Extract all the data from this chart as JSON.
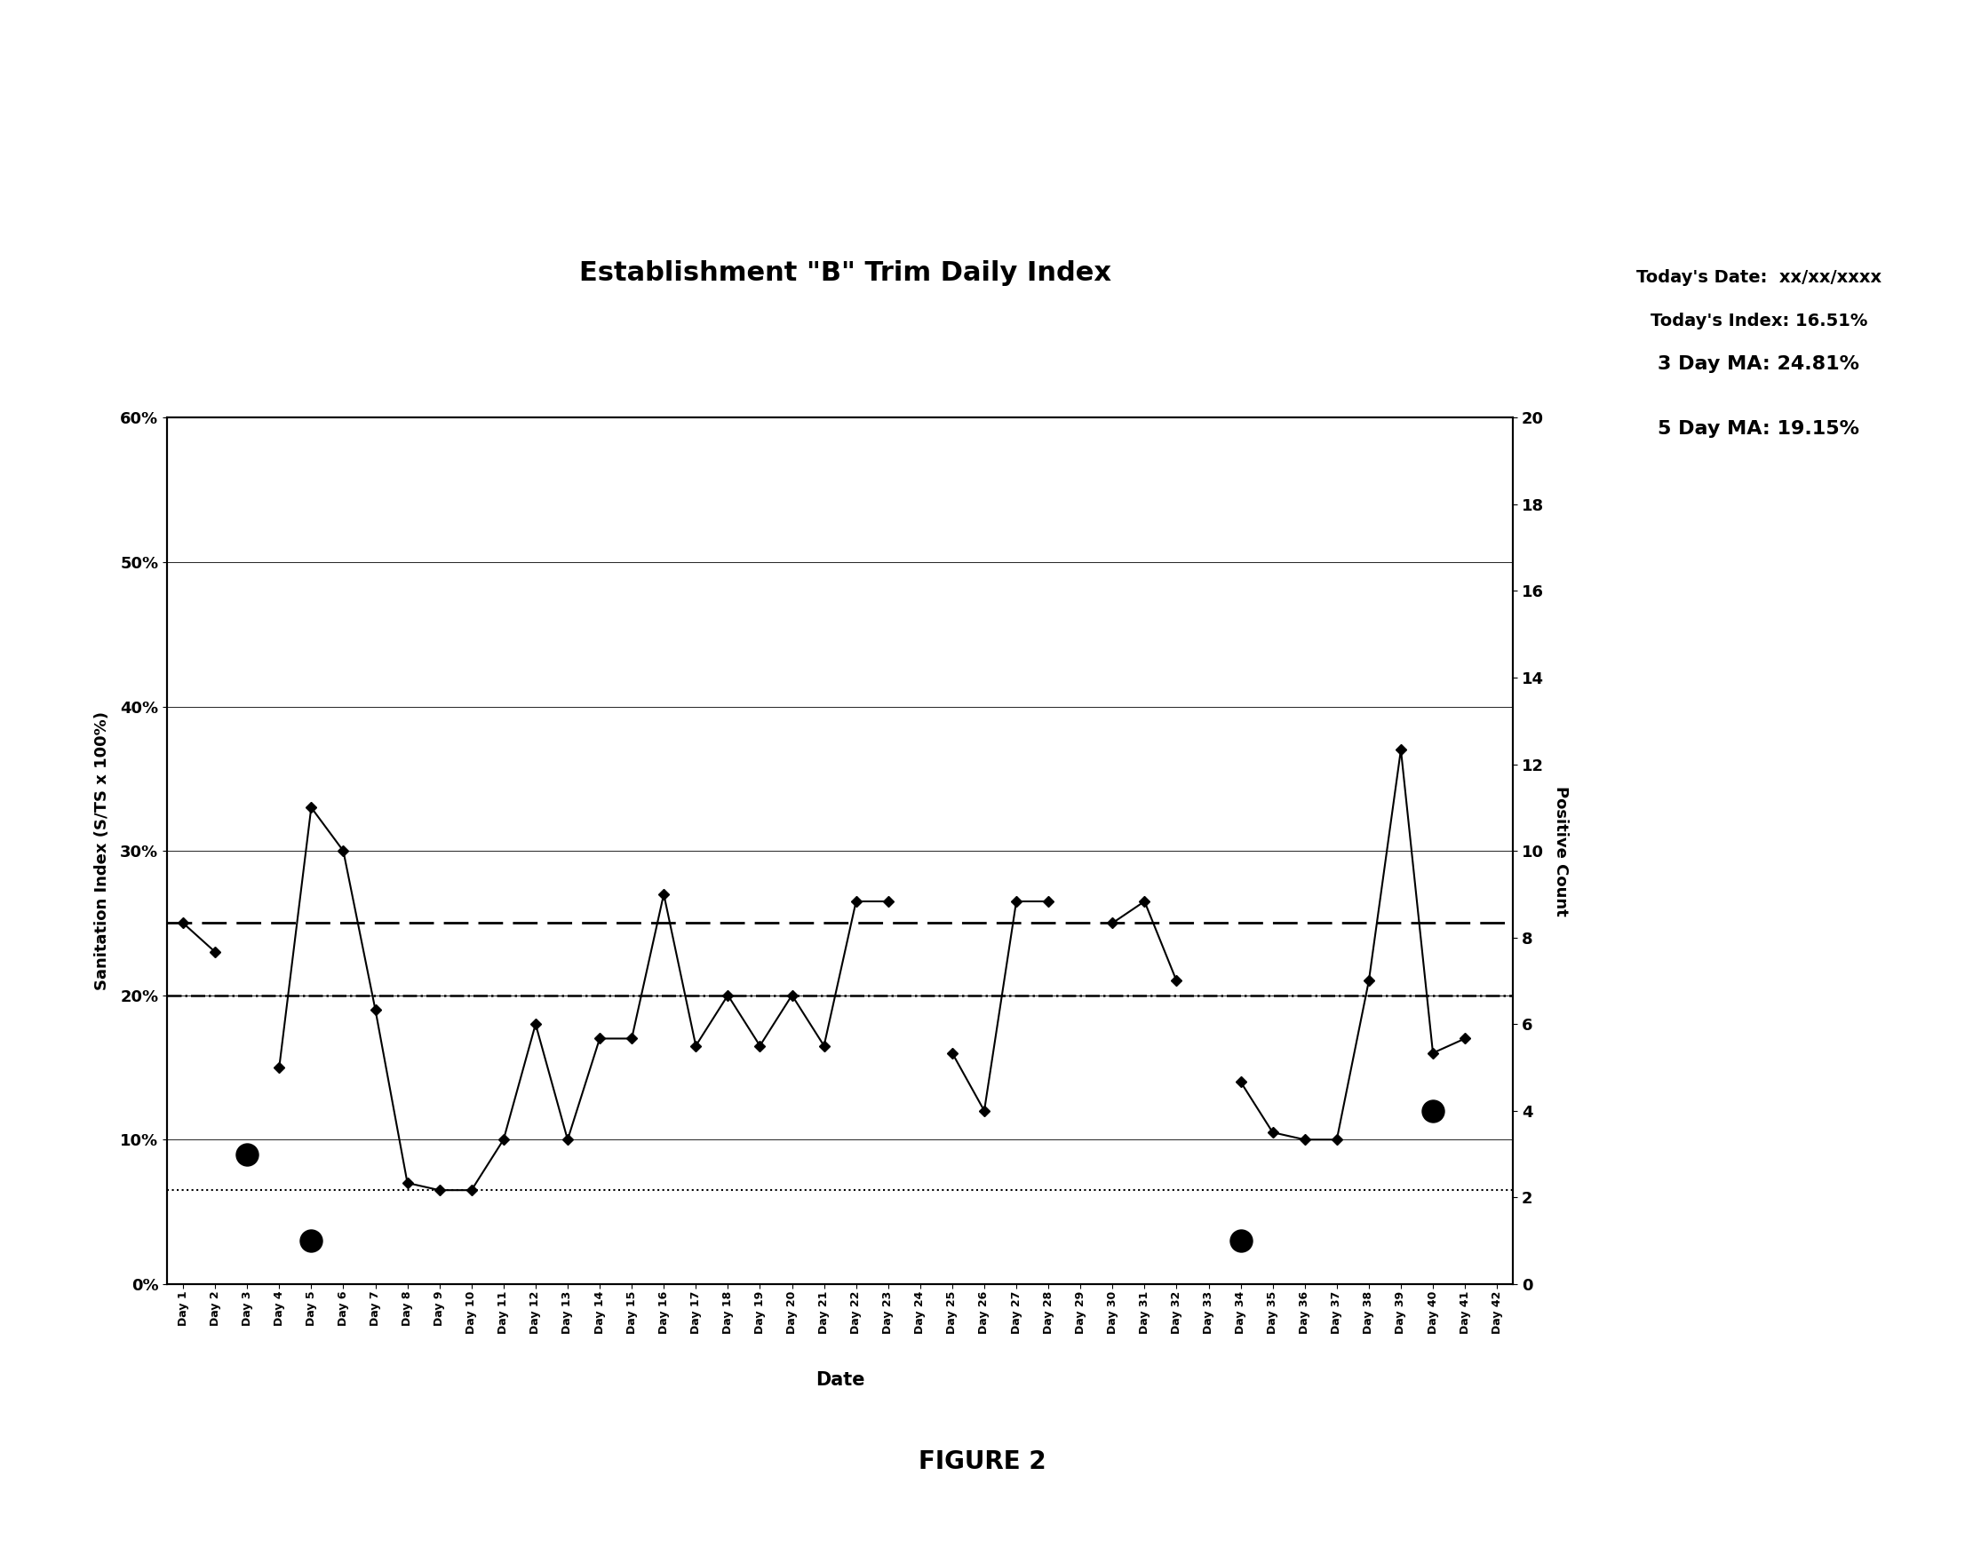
{
  "title": "Establishment \"B\" Trim Daily Index",
  "xlabel": "Date",
  "ylabel": "Sanitation Index (S/TS x 100%)",
  "ylabel_right": "Positive Count",
  "top_right_line1": "Today's Date:  xx/xx/xxxx",
  "top_right_line2": "Today's Index: 16.51%",
  "top_right_line3": "3 Day MA: 24.81%",
  "top_right_line4": "5 Day MA: 19.15%",
  "days": [
    "Day 1",
    "Day 2",
    "Day 3",
    "Day 4",
    "Day 5",
    "Day 6",
    "Day 7",
    "Day 8",
    "Day 9",
    "Day 10",
    "Day 11",
    "Day 12",
    "Day 13",
    "Day 14",
    "Day 15",
    "Day 16",
    "Day 17",
    "Day 18",
    "Day 19",
    "Day 20",
    "Day 21",
    "Day 22",
    "Day 23",
    "Day 24",
    "Day 25",
    "Day 26",
    "Day 27",
    "Day 28",
    "Day 29",
    "Day 30",
    "Day 31",
    "Day 32",
    "Day 33",
    "Day 34",
    "Day 35",
    "Day 36",
    "Day 37",
    "Day 38",
    "Day 39",
    "Day 40",
    "Day 41",
    "Day 42"
  ],
  "daily_index": [
    0.25,
    0.23,
    null,
    0.15,
    0.33,
    0.3,
    0.19,
    0.07,
    0.065,
    0.065,
    0.1,
    0.18,
    0.1,
    0.17,
    0.17,
    0.27,
    0.165,
    0.2,
    0.165,
    0.2,
    0.165,
    0.265,
    0.265,
    null,
    0.16,
    0.12,
    0.265,
    0.265,
    null,
    0.25,
    0.265,
    0.21,
    null,
    0.14,
    0.105,
    0.1,
    0.1,
    0.21,
    0.37,
    0.16,
    0.17,
    null
  ],
  "thirty_day_avg": 0.2,
  "ucl": 0.25,
  "performance_target": 0.065,
  "positive_days_idx": [
    2,
    4,
    33,
    39
  ],
  "positive_values_pct": [
    0.09,
    0.03,
    0.03,
    0.12
  ],
  "ylim": [
    0.0,
    0.6
  ],
  "ylim_right": [
    0,
    20
  ],
  "yticks_left": [
    0.0,
    0.1,
    0.2,
    0.3,
    0.4,
    0.5,
    0.6
  ],
  "ytick_labels_left": [
    "0%",
    "10%",
    "20%",
    "30%",
    "40%",
    "50%",
    "60%"
  ],
  "yticks_right": [
    0,
    2,
    4,
    6,
    8,
    10,
    12,
    14,
    16,
    18,
    20
  ],
  "figure_caption": "FIGURE 2",
  "background_color": "white"
}
